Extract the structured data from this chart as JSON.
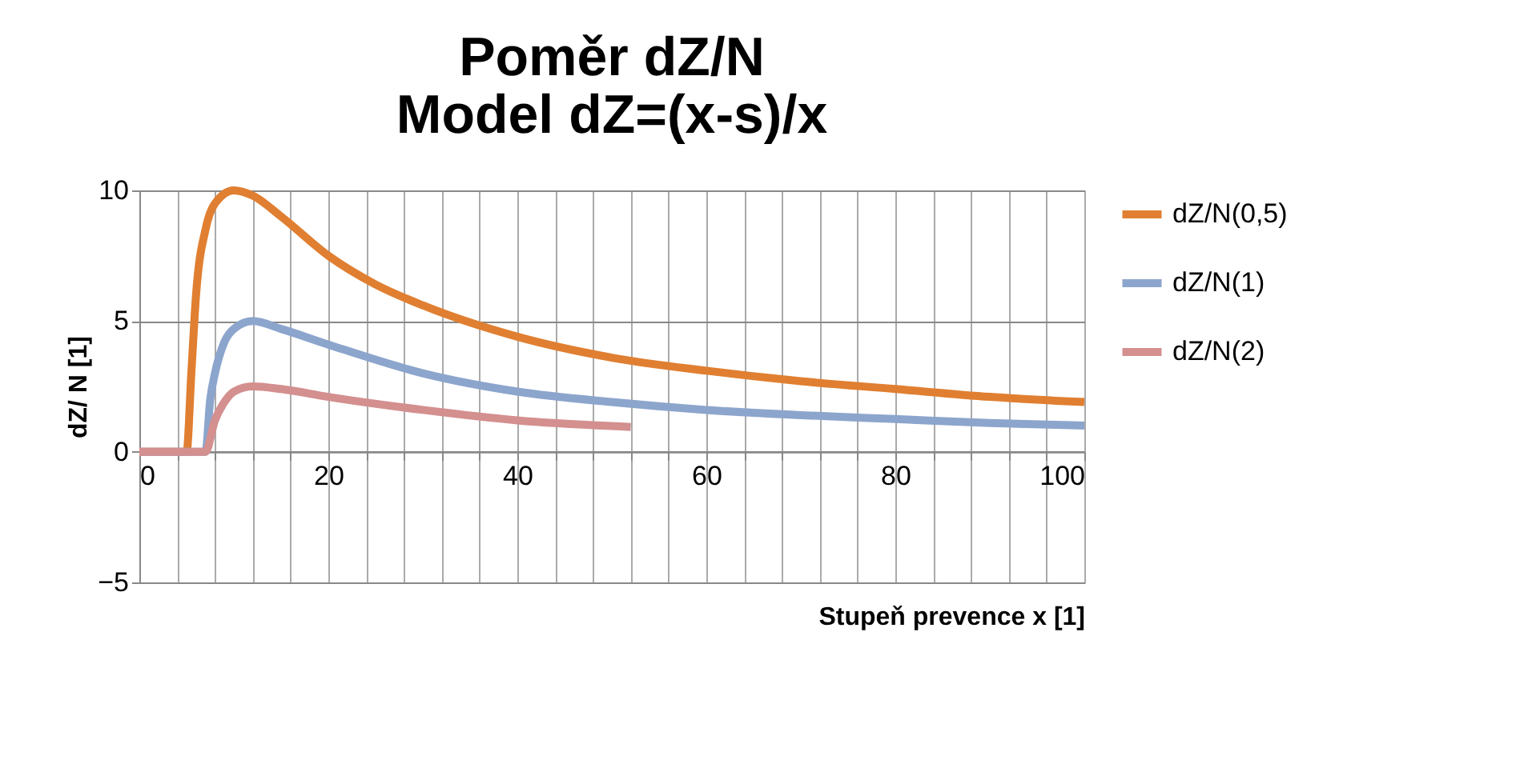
{
  "chart_data": {
    "type": "line",
    "title": [
      "Poměr dZ/N",
      "Model dZ=(x-s)/x"
    ],
    "xlabel": "Stupeň prevence x [1]",
    "ylabel": "dZ/ N [1]",
    "series": [
      {
        "name": "dZ/N(0,5)",
        "color": "#e07f31",
        "x": [
          0,
          5,
          5.5,
          6,
          7,
          8,
          10,
          12,
          15,
          20,
          25,
          30,
          40,
          50,
          60,
          70,
          80,
          90,
          100
        ],
        "values": [
          0,
          0,
          3,
          6,
          8.5,
          9.5,
          10,
          9.8,
          9,
          7.5,
          6.4,
          5.6,
          4.4,
          3.6,
          3.1,
          2.7,
          2.4,
          2.1,
          1.9
        ]
      },
      {
        "name": "dZ/N(1)",
        "color": "#8ca5cc",
        "x": [
          0,
          7,
          7.5,
          8,
          9,
          10,
          12,
          15,
          20,
          30,
          40,
          50,
          60,
          70,
          80,
          90,
          100
        ],
        "values": [
          0,
          0,
          2,
          3,
          4.2,
          4.7,
          5,
          4.7,
          4.1,
          3.0,
          2.3,
          1.9,
          1.6,
          1.4,
          1.25,
          1.1,
          1.0
        ]
      },
      {
        "name": "dZ/N(2)",
        "color": "#d48f8f",
        "x": [
          0,
          7,
          8,
          9,
          10,
          12,
          15,
          20,
          30,
          40,
          52
        ],
        "values": [
          0,
          0,
          1.2,
          1.9,
          2.3,
          2.5,
          2.4,
          2.1,
          1.6,
          1.2,
          0.95
        ]
      }
    ],
    "xlim": [
      0,
      100
    ],
    "xticks": [
      0,
      20,
      40,
      60,
      80,
      100
    ],
    "ylim": [
      -5,
      10
    ],
    "yticks": [
      -5,
      0,
      5,
      10
    ],
    "grid": true,
    "legend": "right",
    "line_style": "solid",
    "marker": "none"
  }
}
